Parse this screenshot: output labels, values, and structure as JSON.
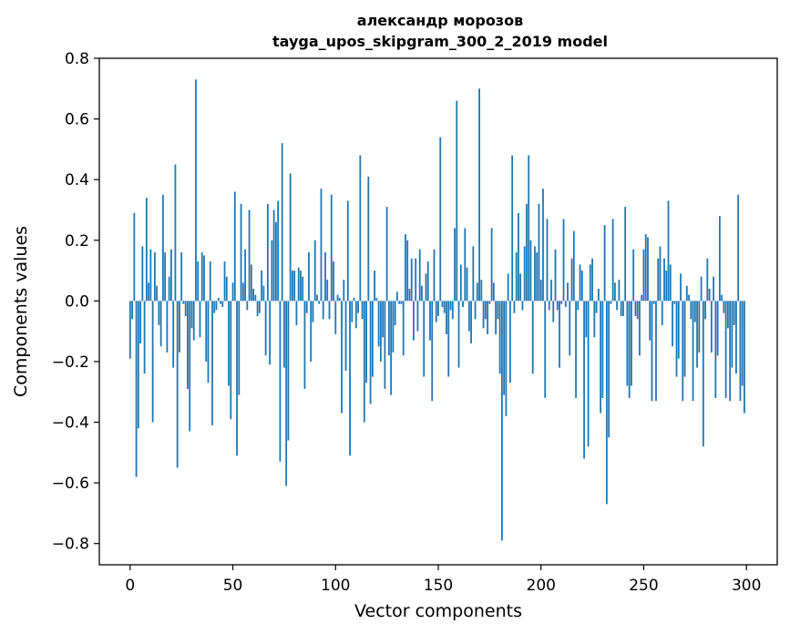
{
  "chart_data": {
    "type": "bar",
    "title_lines": [
      "александр морозов",
      "tayga_upos_skipgram_300_2_2019 model"
    ],
    "xlabel": "Vector components",
    "ylabel": "Components values",
    "xlim": [
      -15,
      315
    ],
    "ylim": [
      -0.87,
      0.8
    ],
    "xticks": [
      0,
      50,
      100,
      150,
      200,
      250,
      300
    ],
    "xtick_labels": [
      "0",
      "50",
      "100",
      "150",
      "200",
      "250",
      "300"
    ],
    "yticks": [
      0.8,
      0.6,
      0.4,
      0.2,
      0.0,
      -0.2,
      -0.4,
      -0.6,
      -0.8
    ],
    "ytick_labels": [
      "0.8",
      "0.6",
      "0.4",
      "0.2",
      "0.0",
      "−0.2",
      "−0.4",
      "−0.6",
      "−0.8"
    ],
    "bar_color": "#1f77b4",
    "series": [
      {
        "name": "components",
        "values": [
          -0.19,
          -0.06,
          0.29,
          -0.58,
          -0.42,
          -0.14,
          0.18,
          -0.24,
          0.34,
          0.06,
          0.17,
          -0.4,
          0.16,
          0.05,
          -0.08,
          -0.15,
          0.35,
          0.16,
          -0.17,
          0.08,
          0.17,
          -0.22,
          0.45,
          -0.55,
          -0.17,
          0.16,
          -0.01,
          -0.05,
          -0.29,
          -0.43,
          -0.09,
          -0.13,
          0.73,
          0.13,
          -0.12,
          0.16,
          0.15,
          -0.2,
          -0.27,
          0.13,
          -0.41,
          -0.04,
          -0.03,
          0.01,
          -0.01,
          -0.02,
          0.13,
          0.08,
          -0.28,
          -0.39,
          0.06,
          0.36,
          -0.51,
          -0.31,
          0.32,
          0.06,
          0.17,
          -0.03,
          0.3,
          0.12,
          0.04,
          0.02,
          -0.05,
          -0.04,
          0.1,
          0.05,
          -0.18,
          0.32,
          -0.21,
          0.2,
          0.3,
          0.26,
          0.33,
          -0.53,
          0.52,
          -0.22,
          -0.61,
          -0.46,
          0.42,
          0.1,
          0.1,
          -0.08,
          0.11,
          0.1,
          0.08,
          -0.29,
          -0.04,
          0.16,
          -0.2,
          -0.07,
          0.2,
          0.02,
          -0.01,
          0.37,
          -0.06,
          0.16,
          0.07,
          -0.06,
          0.35,
          0.13,
          -0.11,
          0.02,
          0.01,
          -0.37,
          0.07,
          -0.23,
          0.33,
          -0.51,
          -0.07,
          0.01,
          -0.09,
          -0.04,
          0.48,
          -0.06,
          -0.4,
          -0.27,
          0.41,
          -0.34,
          -0.25,
          0.1,
          0.01,
          -0.15,
          -0.2,
          -0.12,
          -0.29,
          0.31,
          -0.18,
          -0.31,
          -0.17,
          -0.08,
          0.03,
          -0.01,
          -0.01,
          -0.18,
          0.22,
          0.2,
          0.04,
          0.14,
          -0.13,
          0.14,
          -0.1,
          0.17,
          0.05,
          -0.25,
          0.09,
          0.13,
          -0.13,
          -0.33,
          0.17,
          -0.07,
          -0.05,
          0.54,
          -0.02,
          -0.04,
          -0.11,
          -0.25,
          -0.03,
          -0.06,
          0.24,
          0.66,
          -0.22,
          0.12,
          -0.02,
          0.24,
          0.11,
          -0.1,
          -0.14,
          0.18,
          -0.06,
          0.06,
          0.7,
          0.07,
          -0.09,
          -0.06,
          -0.11,
          -0.01,
          0.24,
          0.06,
          -0.11,
          -0.06,
          -0.24,
          -0.79,
          -0.31,
          -0.38,
          0.09,
          -0.27,
          0.48,
          -0.04,
          0.16,
          0.29,
          0.09,
          -0.03,
          0.18,
          0.32,
          0.48,
          0.2,
          -0.24,
          0.18,
          0.16,
          0.32,
          0.07,
          0.37,
          -0.32,
          0.27,
          -0.03,
          0.07,
          -0.07,
          0.17,
          -0.03,
          -0.22,
          -0.01,
          0.27,
          -0.02,
          0.06,
          -0.18,
          0.14,
          0.23,
          -0.32,
          -0.03,
          0.12,
          0.1,
          -0.52,
          -0.12,
          -0.48,
          0.12,
          0.14,
          -0.12,
          -0.04,
          0.04,
          -0.37,
          -0.32,
          0.25,
          -0.67,
          -0.45,
          -0.01,
          0.27,
          0.06,
          -0.03,
          0.07,
          -0.05,
          -0.05,
          0.31,
          -0.28,
          -0.32,
          -0.28,
          0.17,
          -0.05,
          -0.06,
          -0.18,
          0.02,
          0.17,
          0.22,
          0.21,
          -0.13,
          -0.33,
          -0.01,
          -0.33,
          0.14,
          0.18,
          -0.08,
          0.14,
          0.1,
          0.33,
          0.12,
          -0.15,
          -0.01,
          -0.25,
          -0.19,
          0.09,
          -0.33,
          -0.25,
          0.05,
          0.02,
          -0.06,
          -0.33,
          -0.07,
          -0.22,
          -0.17,
          0.08,
          -0.48,
          -0.06,
          0.14,
          0.04,
          -0.17,
          0.08,
          -0.32,
          -0.18,
          0.28,
          0.02,
          -0.04,
          -0.32,
          -0.09,
          -0.33,
          -0.22,
          -0.08,
          -0.24,
          0.35,
          -0.33,
          -0.28,
          -0.37
        ]
      }
    ]
  }
}
